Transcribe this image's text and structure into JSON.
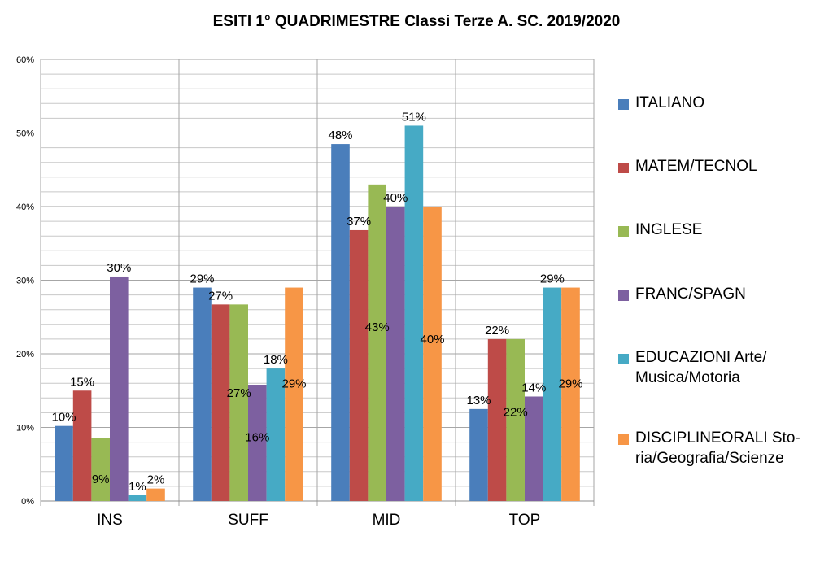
{
  "chart_data": {
    "type": "bar",
    "title": "ESITI 1° QUADRIMESTRE Classi Terze A. SC. 2019/2020",
    "categories": [
      "INS",
      "SUFF",
      "MID",
      "TOP"
    ],
    "yticks": [
      "0%",
      "10%",
      "20%",
      "30%",
      "40%",
      "50%",
      "60%"
    ],
    "ylim": [
      0,
      60
    ],
    "grid": true,
    "legend_position": "right",
    "series": [
      {
        "name": "ITALIANO",
        "color": "#4a7ebb",
        "values": [
          10.2,
          29,
          48.5,
          12.5
        ],
        "labels": [
          "10%",
          "29%",
          "48%",
          "13%"
        ]
      },
      {
        "name": "MATEM/TECNOL",
        "color": "#be4b48",
        "values": [
          15,
          26.7,
          36.8,
          22
        ],
        "labels": [
          "15%",
          "27%",
          "37%",
          "22%"
        ]
      },
      {
        "name": "INGLESE",
        "color": "#98b954",
        "values": [
          8.6,
          26.7,
          43,
          22
        ],
        "labels": [
          "9%",
          "27%",
          "43%",
          "22%"
        ]
      },
      {
        "name": "FRANC/SPAGN",
        "color": "#7d60a0",
        "values": [
          30.5,
          15.8,
          40,
          14.2
        ],
        "labels": [
          "30%",
          "16%",
          "40%",
          "14%"
        ]
      },
      {
        "name": "EDUCAZIONI Arte/ Musica/Motoria",
        "color": "#46aac5",
        "values": [
          0.8,
          18,
          51,
          29
        ],
        "labels": [
          "1%",
          "18%",
          "51%",
          "29%"
        ]
      },
      {
        "name": "DISCIPLINEORALI Sto- ria/Geografia/Scienze",
        "color": "#f79646",
        "values": [
          1.7,
          29,
          40,
          29
        ],
        "labels": [
          "2%",
          "29%",
          "40%",
          "29%"
        ]
      }
    ]
  }
}
